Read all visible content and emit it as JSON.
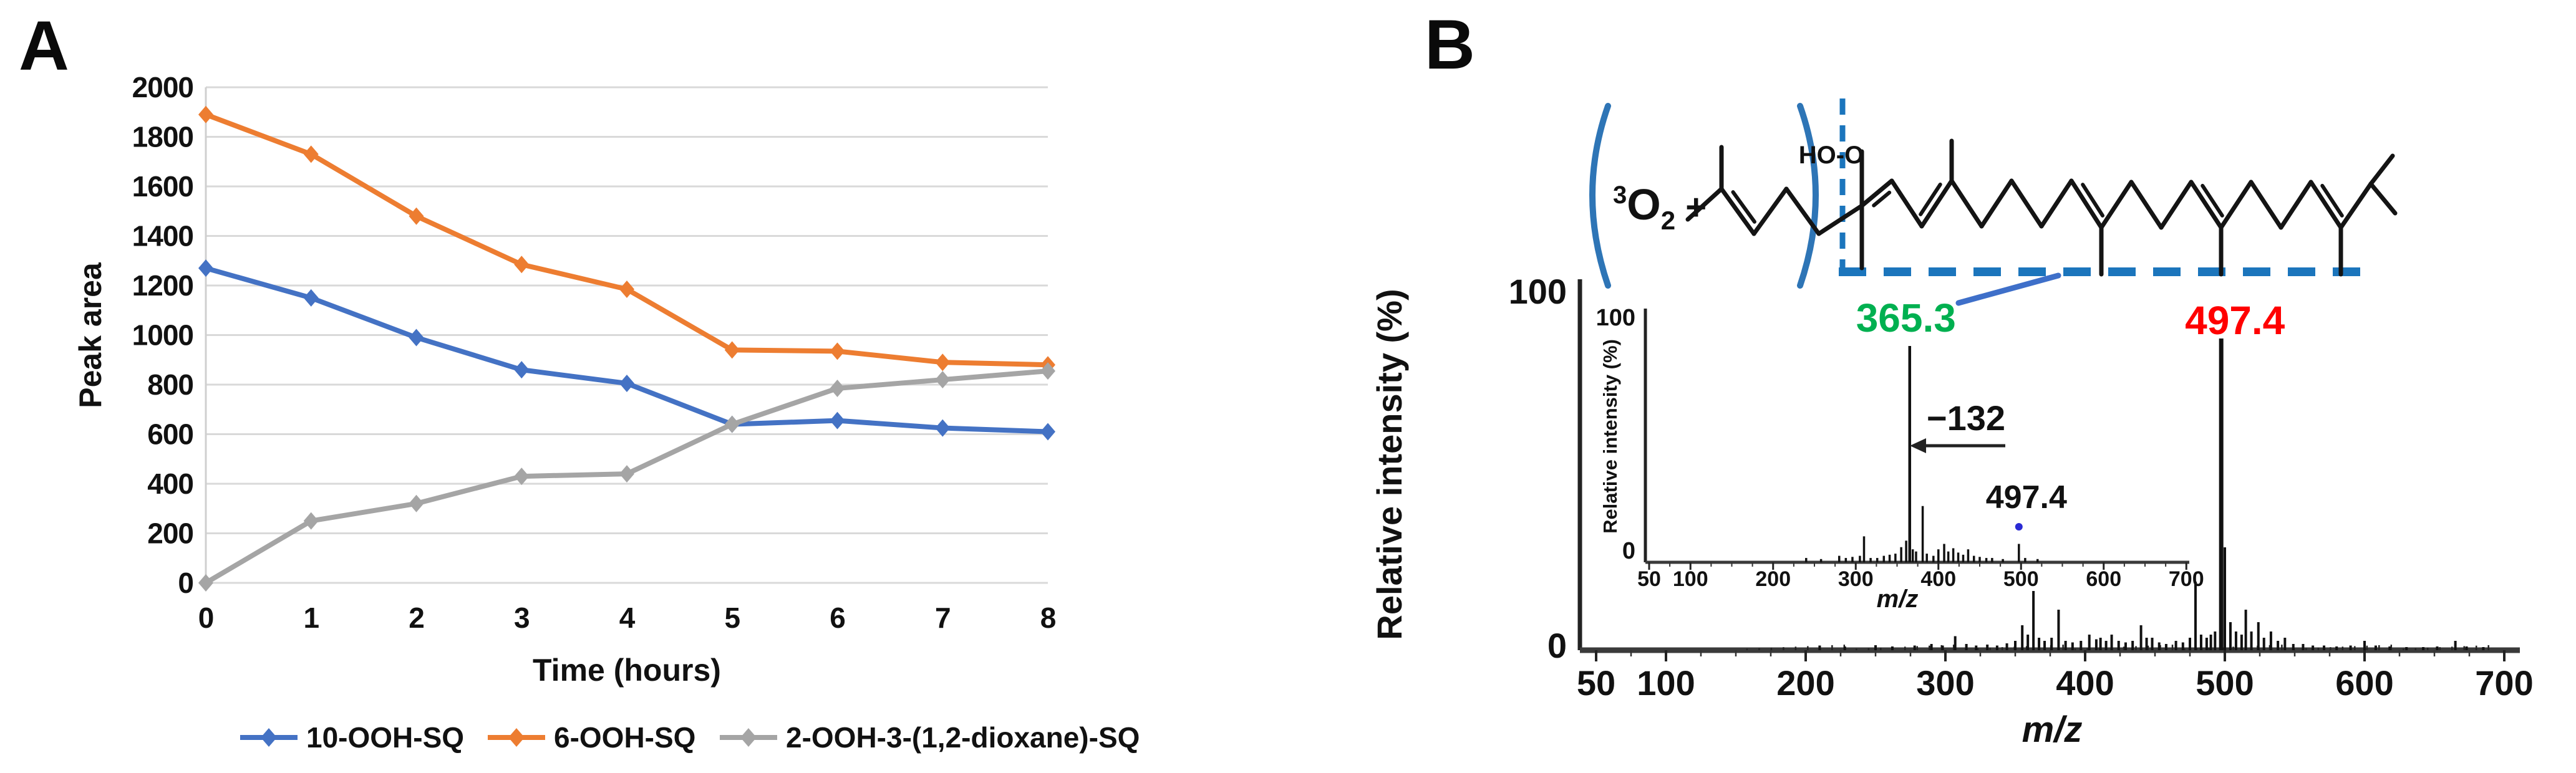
{
  "panel_a": {
    "label": "A",
    "ylabel": "Peak area",
    "xlabel": "Time (hours)"
  },
  "panel_b": {
    "label": "B",
    "reagent": {
      "superscript": "3",
      "symbol": "O",
      "subscript": "2",
      "plus": "+"
    },
    "peroxide_label": "HO-O",
    "main_spectrum": {
      "ylabel": "Relative intensity (%)",
      "xlabel": "m/z",
      "ytick_top": "100",
      "ytick_bottom": "0",
      "base_peak_label": "497.4",
      "base_peak_label_color": "#FF0000"
    },
    "inset_spectrum": {
      "ylabel": "Relative intensity (%)",
      "xlabel": "m/z",
      "ytick_top": "100",
      "ytick_bottom": "0",
      "base_peak_label": "365.3",
      "base_peak_label_color": "#00B050",
      "neutral_loss_label": "−132",
      "secondary_peak_label": "497.4"
    }
  },
  "chart_data": [
    {
      "type": "line",
      "panel": "A",
      "title": "",
      "xlabel": "Time (hours)",
      "ylabel": "Peak area",
      "x": [
        0,
        1,
        2,
        3,
        4,
        5,
        6,
        7,
        8
      ],
      "xticks": [
        "0",
        "1",
        "2",
        "3",
        "4",
        "5",
        "6",
        "7",
        "8"
      ],
      "yticks": [
        0,
        200,
        400,
        600,
        800,
        1000,
        1200,
        1400,
        1600,
        1800,
        2000
      ],
      "ylim": [
        0,
        2000
      ],
      "grid": "horizontal",
      "legend_position": "bottom",
      "series": [
        {
          "name": "10-OOH-SQ",
          "color": "#4472C4",
          "values": [
            1270,
            1150,
            990,
            860,
            805,
            640,
            655,
            625,
            610
          ]
        },
        {
          "name": "6-OOH-SQ",
          "color": "#ED7D31",
          "values": [
            1890,
            1730,
            1480,
            1285,
            1185,
            940,
            935,
            890,
            880
          ]
        },
        {
          "name": "2-OOH-3-(1,2-dioxane)-SQ",
          "color": "#A5A5A5",
          "values": [
            0,
            250,
            320,
            430,
            440,
            640,
            785,
            820,
            855
          ]
        }
      ]
    },
    {
      "type": "bar",
      "panel": "B-main",
      "title": "Product ion mass spectrum",
      "xlabel": "m/z",
      "ylabel": "Relative intensity (%)",
      "xlim": [
        50,
        700
      ],
      "ylim": [
        0,
        100
      ],
      "xticks": [
        50,
        100,
        200,
        300,
        400,
        500,
        600,
        700
      ],
      "yticks": [
        0,
        100
      ],
      "base_peak": {
        "mz": 497.4,
        "intensity": 100,
        "label": "497.4",
        "label_color": "#FF0000"
      },
      "peaks": [
        [
          210,
          1.5
        ],
        [
          228,
          1.2
        ],
        [
          250,
          1.6
        ],
        [
          262,
          1.2
        ],
        [
          278,
          1.5
        ],
        [
          290,
          2
        ],
        [
          298,
          1.5
        ],
        [
          307,
          4.5
        ],
        [
          315,
          2
        ],
        [
          322,
          1.5
        ],
        [
          330,
          1.8
        ],
        [
          337,
          1.5
        ],
        [
          344,
          2.2
        ],
        [
          350,
          3
        ],
        [
          355,
          8
        ],
        [
          359,
          5
        ],
        [
          363,
          19
        ],
        [
          367,
          4
        ],
        [
          371,
          3
        ],
        [
          376,
          4
        ],
        [
          381,
          13
        ],
        [
          386,
          3
        ],
        [
          391,
          2.5
        ],
        [
          397,
          3
        ],
        [
          403,
          5
        ],
        [
          408,
          3.5
        ],
        [
          411,
          4
        ],
        [
          415,
          3
        ],
        [
          419,
          5
        ],
        [
          424,
          3
        ],
        [
          429,
          2.5
        ],
        [
          434,
          3
        ],
        [
          440,
          8
        ],
        [
          444,
          4
        ],
        [
          448,
          4
        ],
        [
          453,
          2.5
        ],
        [
          458,
          2
        ],
        [
          465,
          3
        ],
        [
          470,
          2.5
        ],
        [
          475,
          4
        ],
        [
          479,
          22
        ],
        [
          483,
          5
        ],
        [
          487,
          4
        ],
        [
          490,
          5
        ],
        [
          493,
          6
        ],
        [
          497.4,
          100
        ],
        [
          500,
          33
        ],
        [
          504,
          9
        ],
        [
          508,
          6
        ],
        [
          512,
          5
        ],
        [
          515,
          13
        ],
        [
          519,
          6
        ],
        [
          524,
          9
        ],
        [
          528,
          4
        ],
        [
          533,
          6
        ],
        [
          538,
          3
        ],
        [
          543,
          4
        ],
        [
          549,
          2
        ],
        [
          556,
          2
        ],
        [
          563,
          1.5
        ],
        [
          571,
          1.5
        ],
        [
          580,
          1.2
        ],
        [
          590,
          1.5
        ],
        [
          600,
          3
        ],
        [
          608,
          1.5
        ],
        [
          618,
          1.2
        ],
        [
          630,
          1
        ],
        [
          642,
          1
        ],
        [
          652,
          1.2
        ],
        [
          665,
          3
        ],
        [
          673,
          1.2
        ],
        [
          685,
          1
        ]
      ]
    },
    {
      "type": "bar",
      "panel": "B-inset",
      "title": "Inset mass spectrum",
      "xlabel": "m/z",
      "ylabel": "Relative intensity (%)",
      "xlim": [
        50,
        700
      ],
      "ylim": [
        0,
        100
      ],
      "xticks": [
        50,
        100,
        200,
        300,
        400,
        500,
        600,
        700
      ],
      "yticks": [
        0,
        100
      ],
      "base_peak": {
        "mz": 365.3,
        "intensity": 100,
        "label": "365.3",
        "label_color": "#00B050"
      },
      "neutral_loss": {
        "label": "−132",
        "from_mz": 497.4,
        "to_mz": 365.3
      },
      "secondary_peak": {
        "mz": 497.4,
        "intensity": 8.5,
        "label": "497.4",
        "marker_color": "#2A2AD4"
      },
      "peaks": [
        [
          240,
          2
        ],
        [
          258,
          1.5
        ],
        [
          280,
          3
        ],
        [
          288,
          2
        ],
        [
          296,
          2.5
        ],
        [
          305,
          3
        ],
        [
          310,
          12
        ],
        [
          318,
          2
        ],
        [
          326,
          2
        ],
        [
          334,
          3
        ],
        [
          341,
          3.5
        ],
        [
          348,
          4
        ],
        [
          355,
          7
        ],
        [
          361,
          10
        ],
        [
          365.3,
          100
        ],
        [
          369,
          6
        ],
        [
          373,
          5
        ],
        [
          381,
          26
        ],
        [
          386,
          4
        ],
        [
          394,
          3
        ],
        [
          400,
          6
        ],
        [
          407,
          8.5
        ],
        [
          412,
          5
        ],
        [
          418,
          6.5
        ],
        [
          424,
          4.5
        ],
        [
          430,
          3.5
        ],
        [
          436,
          6
        ],
        [
          443,
          3
        ],
        [
          450,
          2.5
        ],
        [
          458,
          2
        ],
        [
          465,
          2
        ],
        [
          478,
          1.5
        ],
        [
          497.4,
          8.5
        ],
        [
          505,
          2
        ],
        [
          520,
          1.5
        ]
      ]
    }
  ],
  "colors": {
    "series_blue": "#4472C4",
    "series_orange": "#ED7D31",
    "series_gray": "#A5A5A5",
    "annotation_blue": "#1B75BC",
    "paren_blue": "#2E75B6",
    "diagonal_blue": "#3E6FC9",
    "green_label": "#00B050",
    "red_label": "#FF0000",
    "gridline": "#D9D9D9"
  }
}
